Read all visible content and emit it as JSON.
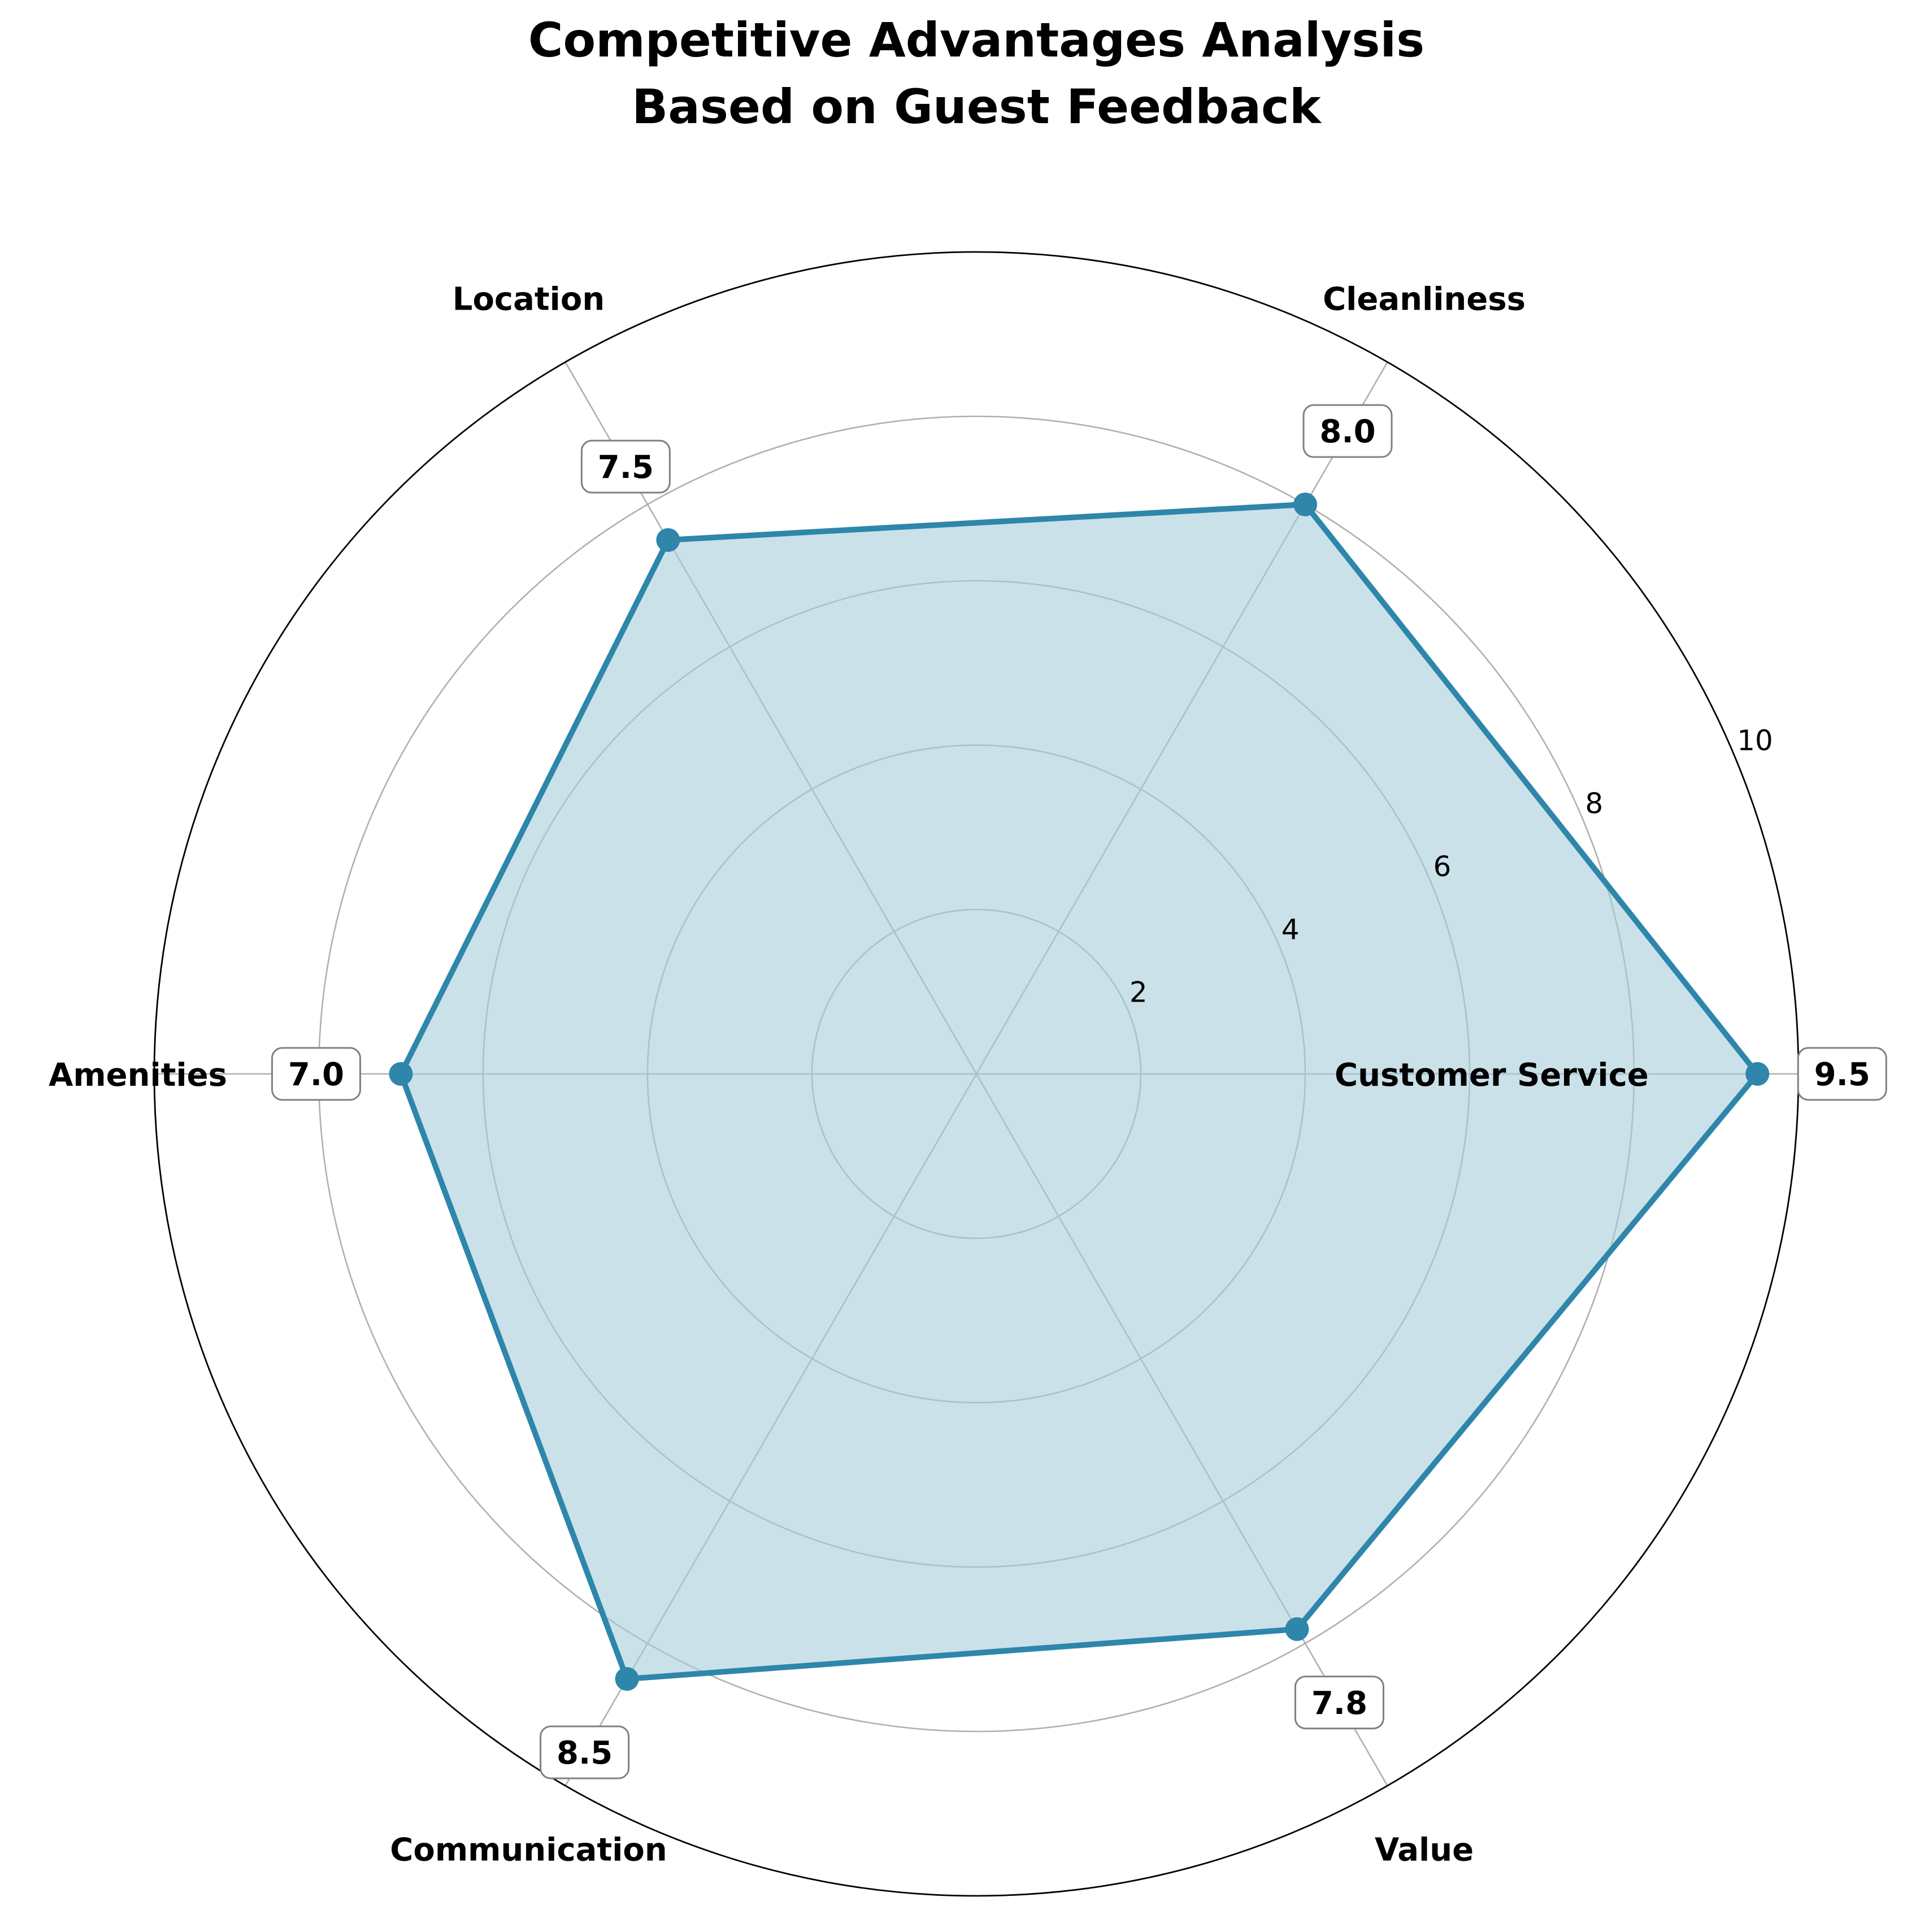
{
  "chart_data": {
    "type": "radar",
    "title": "Competitive Advantages Analysis\nBased on Guest Feedback",
    "title_lines": [
      "Competitive Advantages Analysis",
      "Based on Guest Feedback"
    ],
    "categories": [
      "Customer Service",
      "Cleanliness",
      "Location",
      "Amenities",
      "Communication",
      "Value"
    ],
    "values": [
      9.5,
      8.0,
      7.5,
      7.0,
      8.5,
      7.8
    ],
    "value_labels": [
      "9.5",
      "8.0",
      "7.5",
      "7.0",
      "8.5",
      "7.8"
    ],
    "rlim": [
      0,
      10
    ],
    "rticks": [
      2,
      4,
      6,
      8,
      10
    ],
    "rtick_labels": [
      "2",
      "4",
      "6",
      "8",
      "10"
    ],
    "grid": true,
    "colors": {
      "line": "#2e86ab",
      "fill": "#a9cddb",
      "grid": "#b0b0b0",
      "label_box_border": "#808080"
    }
  }
}
